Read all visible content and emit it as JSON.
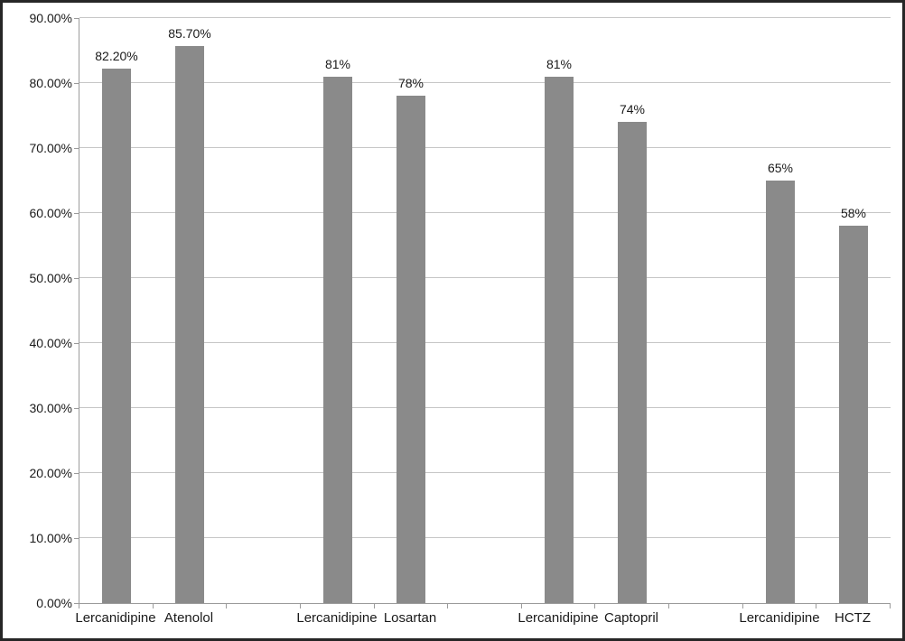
{
  "chart_data": {
    "type": "bar",
    "title": "",
    "xlabel": "",
    "ylabel": "",
    "ylim": [
      0,
      90
    ],
    "grid": true,
    "legend": "none",
    "categories": [
      "Lercanidipine",
      "Atenolol",
      "",
      "Lercanidipine",
      "Losartan",
      "",
      "Lercanidipine",
      "Captopril",
      "",
      "Lercanidipine",
      "HCTZ"
    ],
    "values": [
      82.2,
      85.7,
      null,
      81,
      78,
      null,
      81,
      74,
      null,
      65,
      58
    ],
    "bar_labels": [
      "82.20%",
      "85.70%",
      "",
      "81%",
      "78%",
      "",
      "81%",
      "74%",
      "",
      "65%",
      "58%"
    ],
    "y_tick_labels": [
      "0.00%",
      "10.00%",
      "20.00%",
      "30.00%",
      "40.00%",
      "50.00%",
      "60.00%",
      "70.00%",
      "80.00%",
      "90.00%"
    ],
    "y_tick_values": [
      0,
      10,
      20,
      30,
      40,
      50,
      60,
      70,
      80,
      90
    ],
    "groups": [
      {
        "pair": [
          "Lercanidipine",
          "Atenolol"
        ],
        "values": [
          82.2,
          85.7
        ]
      },
      {
        "pair": [
          "Lercanidipine",
          "Losartan"
        ],
        "values": [
          81,
          78
        ]
      },
      {
        "pair": [
          "Lercanidipine",
          "Captopril"
        ],
        "values": [
          81,
          74
        ]
      },
      {
        "pair": [
          "Lercanidipine",
          "HCTZ"
        ],
        "values": [
          65,
          58
        ]
      }
    ],
    "colors": {
      "bar": "#8a8a8a",
      "gridline": "#c6c6c6",
      "axis": "#9b9b9b",
      "text": "#1a1a1a",
      "frame_border": "#262626",
      "background": "#ffffff"
    }
  }
}
